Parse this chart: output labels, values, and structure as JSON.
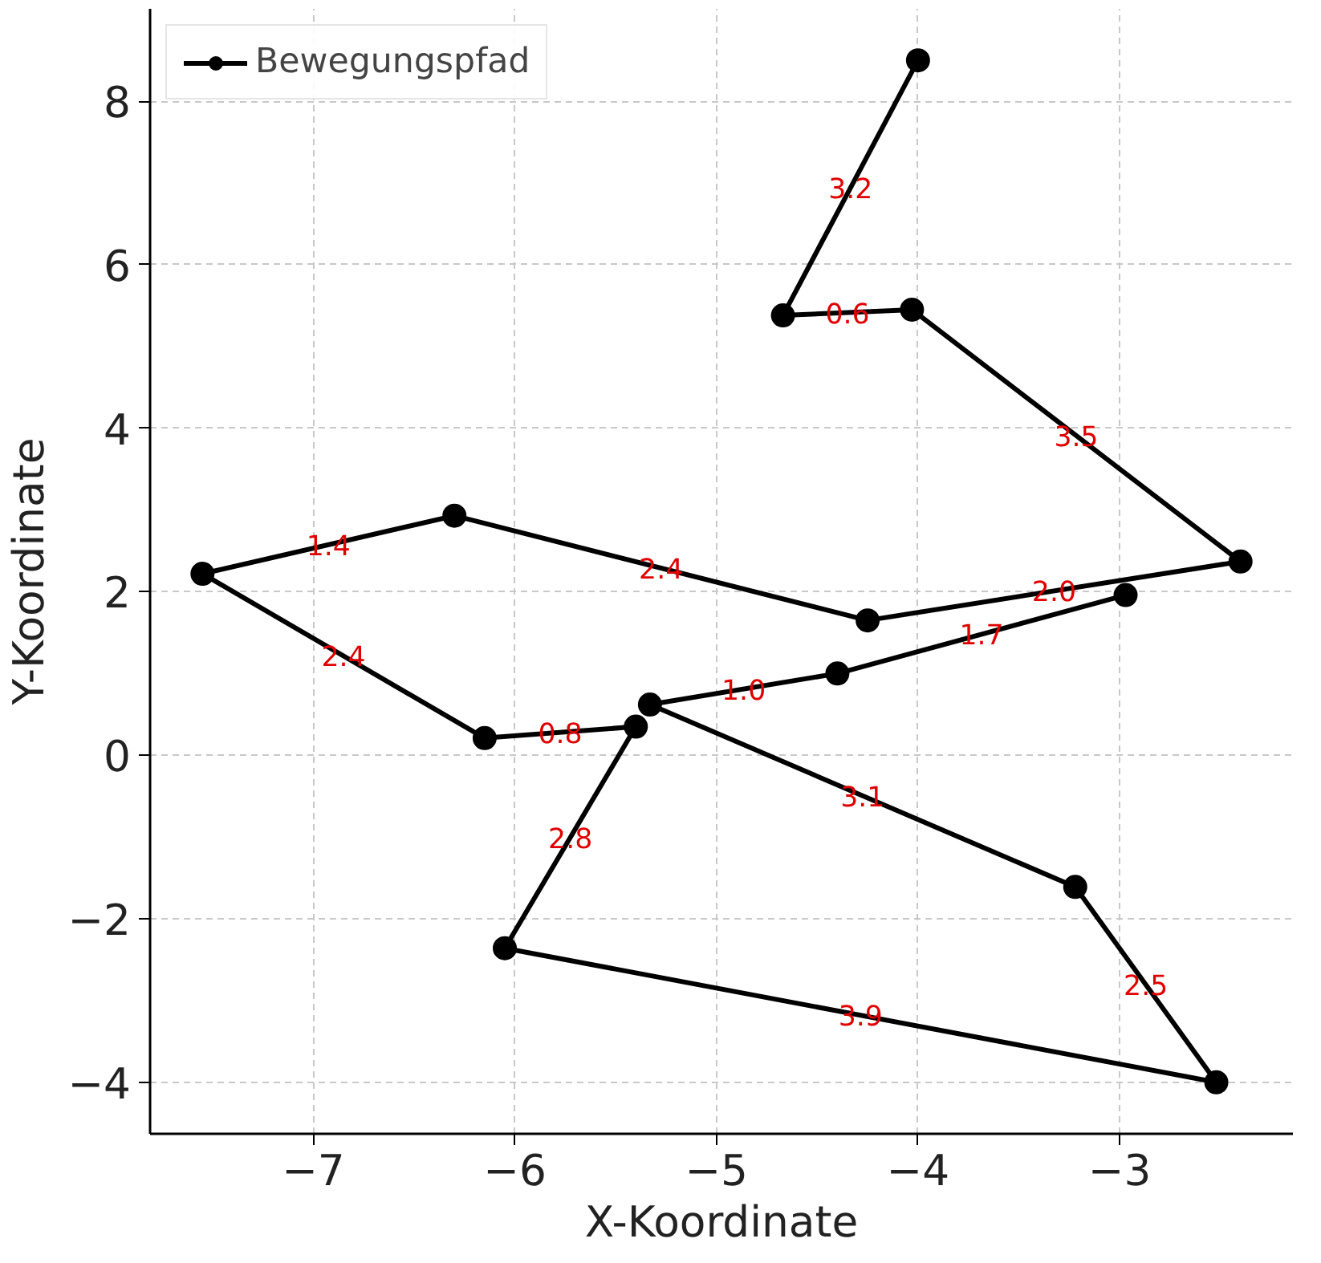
{
  "chart_data": {
    "type": "line",
    "xlabel": "X-Koordinate",
    "ylabel": "Y-Koordinate",
    "series": [
      {
        "name": "Bewegungspfad",
        "color": "#000000",
        "x": [
          -4.0,
          -4.67,
          -4.03,
          -2.4,
          -4.25,
          -6.3,
          -7.55,
          -6.15,
          -5.4,
          -6.05,
          -2.52,
          -3.22,
          -5.33,
          -4.4,
          -2.97
        ],
        "values": [
          8.5,
          5.38,
          5.45,
          2.37,
          1.65,
          2.93,
          2.22,
          0.21,
          0.35,
          -2.36,
          -4.0,
          -1.61,
          0.62,
          1.0,
          1.96
        ]
      }
    ],
    "annotations": [
      "3.2",
      "0.6",
      "3.5",
      "2.0",
      "2.4",
      "1.4",
      "2.4",
      "0.8",
      "2.8",
      "3.9",
      "2.5",
      "3.1",
      "1.0",
      "1.7"
    ],
    "xlim": [
      -7.81,
      -2.14
    ],
    "ylim": [
      -4.63,
      9.13
    ],
    "xticks": [
      {
        "value": -7,
        "label": "−7"
      },
      {
        "value": -6,
        "label": "−6"
      },
      {
        "value": -5,
        "label": "−5"
      },
      {
        "value": -4,
        "label": "−4"
      },
      {
        "value": -3,
        "label": "−3"
      }
    ],
    "yticks": [
      {
        "value": -4,
        "label": "−4"
      },
      {
        "value": -2,
        "label": "−2"
      },
      0,
      2,
      4,
      6,
      8
    ],
    "grid": true,
    "legend": "top left",
    "marker": "circle",
    "line_style": "solid"
  }
}
